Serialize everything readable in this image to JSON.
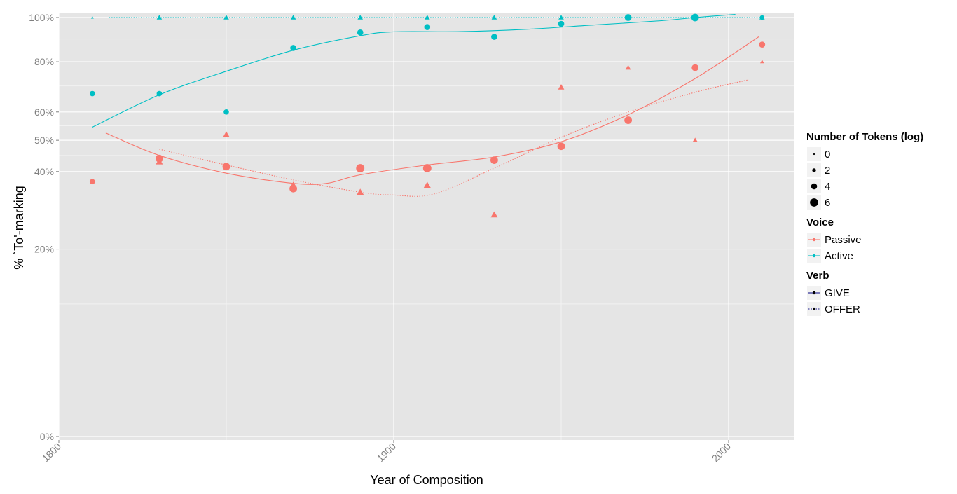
{
  "chart_data": {
    "type": "scatter",
    "title": "",
    "xlabel": "Year of Composition",
    "ylabel": "% `To'-marking",
    "xlim": [
      1800,
      2020
    ],
    "ylim": [
      0,
      100
    ],
    "y_scale": "sqrt",
    "x_ticks": [
      1800,
      1900,
      2000
    ],
    "x_tick_labels": [
      "1800",
      "1900",
      "2000"
    ],
    "y_ticks": [
      0,
      20,
      40,
      50,
      60,
      80,
      100
    ],
    "y_tick_labels": [
      "0%",
      "20%",
      "40%",
      "50%",
      "60%",
      "80%",
      "100%"
    ],
    "grid": true,
    "colors": {
      "Passive": "#F8766D",
      "Active": "#00BFC4",
      "panel": "#E5E5E5",
      "grid": "#FFFFFF"
    },
    "series": [
      {
        "voice": "Active",
        "verb": "GIVE",
        "marker": "circle",
        "linetype": "solid",
        "points": [
          {
            "x": 1810,
            "y": 67,
            "size": 2.5
          },
          {
            "x": 1830,
            "y": 67,
            "size": 2.5
          },
          {
            "x": 1850,
            "y": 60,
            "size": 2.5
          },
          {
            "x": 1870,
            "y": 86,
            "size": 3
          },
          {
            "x": 1890,
            "y": 93,
            "size": 3
          },
          {
            "x": 1910,
            "y": 95.5,
            "size": 3
          },
          {
            "x": 1930,
            "y": 91,
            "size": 3
          },
          {
            "x": 1950,
            "y": 97,
            "size": 3
          },
          {
            "x": 1970,
            "y": 100,
            "size": 3.5
          },
          {
            "x": 1990,
            "y": 100,
            "size": 4
          },
          {
            "x": 2010,
            "y": 100,
            "size": 2
          }
        ],
        "smooth": [
          {
            "x": 1810,
            "y": 54.5
          },
          {
            "x": 1830,
            "y": 66.5
          },
          {
            "x": 1850,
            "y": 76
          },
          {
            "x": 1870,
            "y": 85
          },
          {
            "x": 1890,
            "y": 91.5
          },
          {
            "x": 1900,
            "y": 93.3
          },
          {
            "x": 1920,
            "y": 93.4
          },
          {
            "x": 1940,
            "y": 94.5
          },
          {
            "x": 1960,
            "y": 96.5
          },
          {
            "x": 1980,
            "y": 98.5
          },
          {
            "x": 1990,
            "y": 100
          },
          {
            "x": 2002,
            "y": 101.5
          }
        ]
      },
      {
        "voice": "Active",
        "verb": "OFFER",
        "marker": "triangle",
        "linetype": "dotted",
        "points": [
          {
            "x": 1810,
            "y": 100,
            "size": 0.5
          },
          {
            "x": 1830,
            "y": 100,
            "size": 2
          },
          {
            "x": 1850,
            "y": 100,
            "size": 2
          },
          {
            "x": 1870,
            "y": 100,
            "size": 2
          },
          {
            "x": 1890,
            "y": 100,
            "size": 2
          },
          {
            "x": 1910,
            "y": 100,
            "size": 2
          },
          {
            "x": 1930,
            "y": 100,
            "size": 2
          },
          {
            "x": 1950,
            "y": 100,
            "size": 2
          },
          {
            "x": 1970,
            "y": 100,
            "size": 2
          },
          {
            "x": 1990,
            "y": 100,
            "size": 2
          },
          {
            "x": 2010,
            "y": 100,
            "size": 2
          }
        ],
        "smooth": [
          {
            "x": 1815,
            "y": 100
          },
          {
            "x": 1900,
            "y": 100
          },
          {
            "x": 2010,
            "y": 100
          }
        ]
      },
      {
        "voice": "Passive",
        "verb": "GIVE",
        "marker": "circle",
        "linetype": "solid",
        "points": [
          {
            "x": 1810,
            "y": 37,
            "size": 2.5
          },
          {
            "x": 1830,
            "y": 44,
            "size": 4
          },
          {
            "x": 1850,
            "y": 41.5,
            "size": 4
          },
          {
            "x": 1870,
            "y": 35,
            "size": 4
          },
          {
            "x": 1890,
            "y": 41,
            "size": 4.5
          },
          {
            "x": 1910,
            "y": 41,
            "size": 4.5
          },
          {
            "x": 1930,
            "y": 43.5,
            "size": 4
          },
          {
            "x": 1950,
            "y": 48,
            "size": 4
          },
          {
            "x": 1970,
            "y": 57,
            "size": 4
          },
          {
            "x": 1990,
            "y": 77.5,
            "size": 3.5
          },
          {
            "x": 2010,
            "y": 87.5,
            "size": 3
          }
        ],
        "smooth": [
          {
            "x": 1814,
            "y": 52.5
          },
          {
            "x": 1830,
            "y": 45
          },
          {
            "x": 1850,
            "y": 39.5
          },
          {
            "x": 1870,
            "y": 36.5
          },
          {
            "x": 1880,
            "y": 36.5
          },
          {
            "x": 1890,
            "y": 39
          },
          {
            "x": 1910,
            "y": 42
          },
          {
            "x": 1930,
            "y": 44.5
          },
          {
            "x": 1950,
            "y": 49.5
          },
          {
            "x": 1970,
            "y": 59
          },
          {
            "x": 1990,
            "y": 73
          },
          {
            "x": 2009,
            "y": 91
          }
        ]
      },
      {
        "voice": "Passive",
        "verb": "OFFER",
        "marker": "triangle",
        "linetype": "dotted",
        "points": [
          {
            "x": 1830,
            "y": 43,
            "size": 3
          },
          {
            "x": 1850,
            "y": 52,
            "size": 2.5
          },
          {
            "x": 1870,
            "y": 36,
            "size": 3
          },
          {
            "x": 1890,
            "y": 34,
            "size": 3
          },
          {
            "x": 1910,
            "y": 36,
            "size": 3
          },
          {
            "x": 1930,
            "y": 28,
            "size": 3
          },
          {
            "x": 1950,
            "y": 69.5,
            "size": 2.5
          },
          {
            "x": 1970,
            "y": 77.5,
            "size": 2
          },
          {
            "x": 1990,
            "y": 50,
            "size": 2
          },
          {
            "x": 2010,
            "y": 80,
            "size": 1.2
          }
        ],
        "smooth": [
          {
            "x": 1830,
            "y": 47
          },
          {
            "x": 1850,
            "y": 42
          },
          {
            "x": 1870,
            "y": 37.5
          },
          {
            "x": 1890,
            "y": 34
          },
          {
            "x": 1900,
            "y": 33.2
          },
          {
            "x": 1912,
            "y": 33.5
          },
          {
            "x": 1930,
            "y": 41
          },
          {
            "x": 1950,
            "y": 51
          },
          {
            "x": 1970,
            "y": 60
          },
          {
            "x": 1990,
            "y": 67.5
          },
          {
            "x": 2006,
            "y": 72.5
          }
        ]
      }
    ],
    "legend": {
      "placement": "right",
      "groups": [
        {
          "title": "Number of Tokens (log)",
          "type": "size",
          "items": [
            {
              "label": "0",
              "size": 0.5
            },
            {
              "label": "2",
              "size": 2
            },
            {
              "label": "4",
              "size": 3.5
            },
            {
              "label": "6",
              "size": 5
            }
          ]
        },
        {
          "title": "Voice",
          "type": "color",
          "items": [
            {
              "label": "Passive",
              "color": "#F8766D"
            },
            {
              "label": "Active",
              "color": "#00BFC4"
            }
          ]
        },
        {
          "title": "Verb",
          "type": "shape",
          "items": [
            {
              "label": "GIVE",
              "marker": "circle",
              "linetype": "solid"
            },
            {
              "label": "OFFER",
              "marker": "triangle",
              "linetype": "dotted"
            }
          ]
        }
      ]
    }
  }
}
